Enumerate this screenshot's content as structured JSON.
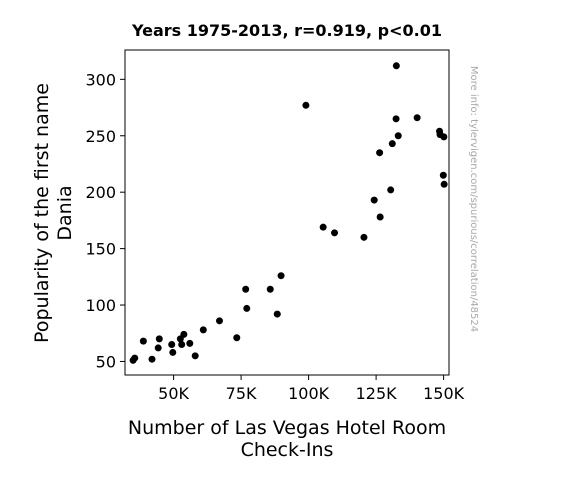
{
  "chart_data": {
    "type": "scatter",
    "title": "Years 1975-2013, r=0.919, p<0.01",
    "xlabel": [
      "Number of Las Vegas Hotel Room",
      "Check-Ins"
    ],
    "ylabel": [
      "Popularity of the first name",
      "Dania"
    ],
    "watermark": "More info: tylervigen.com/spurious/correlation/48524",
    "xlim": [
      32000,
      152000
    ],
    "ylim": [
      38,
      326
    ],
    "x_ticks": [
      {
        "value": 50000,
        "label": "50K"
      },
      {
        "value": 75000,
        "label": "75K"
      },
      {
        "value": 100000,
        "label": "100K"
      },
      {
        "value": 125000,
        "label": "125K"
      },
      {
        "value": 150000,
        "label": "150K"
      }
    ],
    "y_ticks": [
      {
        "value": 50,
        "label": "50"
      },
      {
        "value": 100,
        "label": "100"
      },
      {
        "value": 150,
        "label": "150"
      },
      {
        "value": 200,
        "label": "200"
      },
      {
        "value": 250,
        "label": "250"
      },
      {
        "value": 300,
        "label": "300"
      }
    ],
    "grid": false,
    "marker_color": "#000000",
    "points": [
      {
        "x": 35000,
        "y": 51
      },
      {
        "x": 35600,
        "y": 53
      },
      {
        "x": 38800,
        "y": 68
      },
      {
        "x": 42000,
        "y": 52
      },
      {
        "x": 44300,
        "y": 62
      },
      {
        "x": 44700,
        "y": 70
      },
      {
        "x": 49300,
        "y": 65
      },
      {
        "x": 49700,
        "y": 58
      },
      {
        "x": 52500,
        "y": 70
      },
      {
        "x": 53000,
        "y": 65
      },
      {
        "x": 53800,
        "y": 74
      },
      {
        "x": 56000,
        "y": 66
      },
      {
        "x": 58000,
        "y": 55
      },
      {
        "x": 61000,
        "y": 78
      },
      {
        "x": 67000,
        "y": 86
      },
      {
        "x": 73400,
        "y": 71
      },
      {
        "x": 76700,
        "y": 114
      },
      {
        "x": 77100,
        "y": 97
      },
      {
        "x": 85800,
        "y": 114
      },
      {
        "x": 88400,
        "y": 92
      },
      {
        "x": 89800,
        "y": 126
      },
      {
        "x": 99000,
        "y": 277
      },
      {
        "x": 105400,
        "y": 169
      },
      {
        "x": 109600,
        "y": 164
      },
      {
        "x": 120500,
        "y": 160
      },
      {
        "x": 124300,
        "y": 193
      },
      {
        "x": 126300,
        "y": 235
      },
      {
        "x": 126500,
        "y": 178
      },
      {
        "x": 130400,
        "y": 202
      },
      {
        "x": 131000,
        "y": 243
      },
      {
        "x": 132400,
        "y": 265
      },
      {
        "x": 132500,
        "y": 312
      },
      {
        "x": 133200,
        "y": 250
      },
      {
        "x": 140200,
        "y": 266
      },
      {
        "x": 148500,
        "y": 254
      },
      {
        "x": 148700,
        "y": 251
      },
      {
        "x": 149900,
        "y": 215
      },
      {
        "x": 150100,
        "y": 249
      },
      {
        "x": 150200,
        "y": 207
      }
    ]
  }
}
